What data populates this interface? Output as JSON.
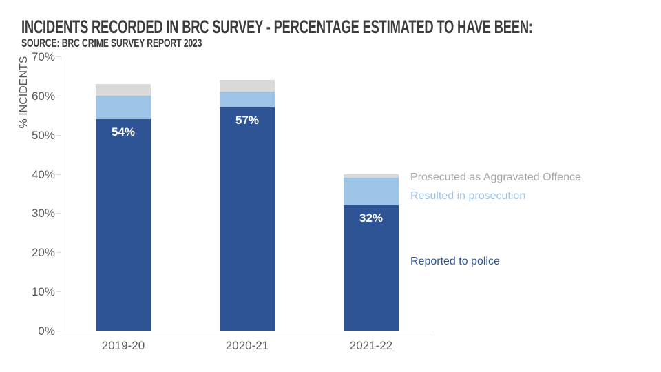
{
  "chart_data": {
    "type": "bar",
    "stacked": true,
    "title": "INCIDENTS RECORDED IN BRC SURVEY - PERCENTAGE ESTIMATED TO HAVE BEEN:",
    "subtitle": "SOURCE: BRC CRIME SURVEY REPORT 2023",
    "categories": [
      "2019-20",
      "2020-21",
      "2021-22"
    ],
    "series": [
      {
        "name": "Reported to police",
        "bar_color": "#2F5496",
        "legend_text_color": "#2F5496",
        "values": [
          54,
          57,
          32
        ],
        "data_labels": [
          "54%",
          "57%",
          "32%"
        ]
      },
      {
        "name": "Resulted in prosecution",
        "bar_color": "#9DC3E6",
        "legend_text_color": "#9DC3E6",
        "values": [
          6,
          4,
          7
        ],
        "data_labels": null
      },
      {
        "name": "Prosecuted as Aggravated Offence",
        "bar_color": "#D9D9D9",
        "legend_text_color": "#A6A6A6",
        "values": [
          3,
          3,
          1
        ],
        "data_labels": null
      }
    ],
    "stack_totals": [
      63,
      64,
      40
    ],
    "xlabel": "",
    "ylabel": "% INCIDENTS",
    "ylim": [
      0,
      70
    ],
    "ytick_labels": [
      "0%",
      "10%",
      "20%",
      "30%",
      "40%",
      "50%",
      "60%",
      "70%"
    ],
    "grid": false,
    "legend_position": "right",
    "axis_color": "#D9D9D9",
    "tick_text_color": "#595959"
  }
}
